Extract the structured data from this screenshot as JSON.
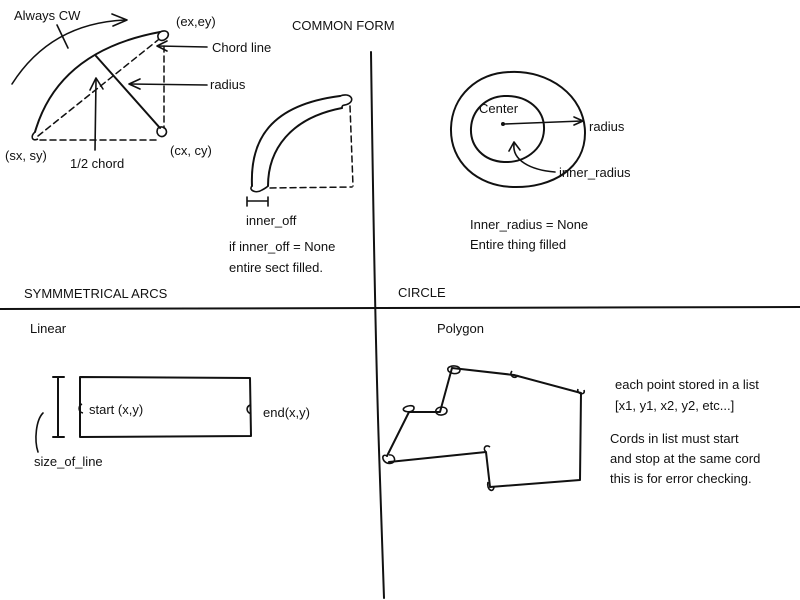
{
  "sections": {
    "common_form": "COMMON FORM",
    "symmetrical_arcs": "SYMMMETRICAL ARCS",
    "circle": "CIRCLE",
    "linear": "Linear",
    "polygon": "Polygon"
  },
  "arc": {
    "always_cw": "Always CW",
    "end_point": "(ex,ey)",
    "chord_line": "Chord line",
    "radius": "radius",
    "start_point": "(sx, sy)",
    "center_point": "(cx, cy)",
    "half_chord": "1/2 chord"
  },
  "sector": {
    "inner_off": "inner_off",
    "note_line1": "if inner_off = None",
    "note_line2": "entire sect filled."
  },
  "circle": {
    "center": "Center",
    "radius": "radius",
    "inner_radius": "inner_radius",
    "note_line1": "Inner_radius = None",
    "note_line2": "Entire thing filled"
  },
  "linear": {
    "start": "start (x,y)",
    "end": "end(x,y)",
    "size_of_line": "size_of_line"
  },
  "polygon": {
    "note1_line1": "each point stored in a list",
    "note1_line2": "[x1, y1, x2, y2, etc...]",
    "note2_line1": "Cords in list must start",
    "note2_line2": "and stop at the same cord",
    "note2_line3": "this is for error checking."
  }
}
